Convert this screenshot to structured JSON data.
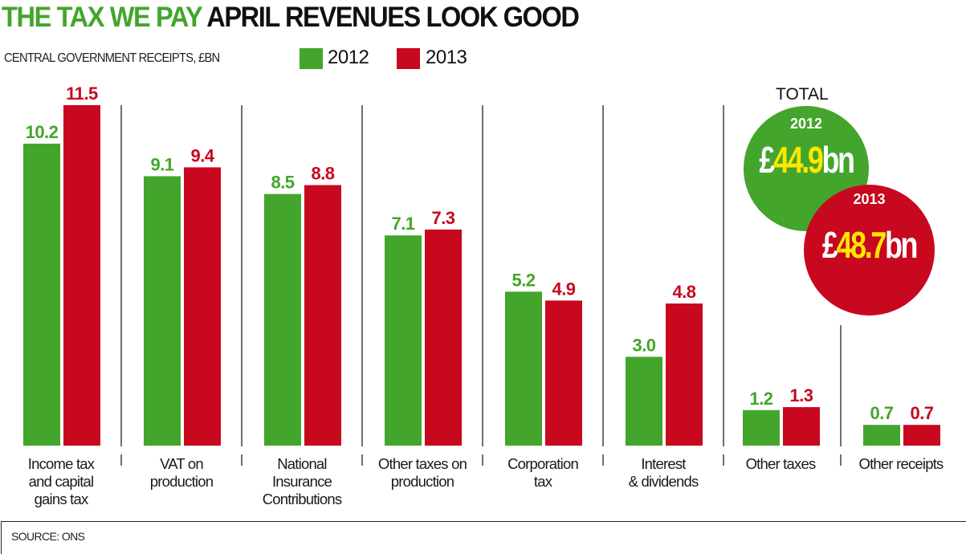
{
  "header": {
    "title_highlight": "THE TAX WE PAY",
    "title_rest": "APRIL REVENUES LOOK GOOD",
    "subtitle": "CENTRAL GOVERNMENT RECEIPTS, £BN"
  },
  "colors": {
    "green_2012": "#43a52b",
    "red_2013": "#c8081f",
    "highlight_yellow": "#ffe600"
  },
  "legend": [
    {
      "label": "2012",
      "color": "#43a52b"
    },
    {
      "label": "2013",
      "color": "#c8081f"
    }
  ],
  "totals": {
    "title": "TOTAL",
    "items": [
      {
        "year": "2012",
        "prefix": "£",
        "value": "44.9",
        "suffix": "bn",
        "color": "#43a52b"
      },
      {
        "year": "2013",
        "prefix": "£",
        "value": "48.7",
        "suffix": "bn",
        "color": "#c8081f"
      }
    ]
  },
  "chart_data": {
    "type": "bar",
    "title": "THE TAX WE PAY APRIL REVENUES LOOK GOOD",
    "subtitle": "CENTRAL GOVERNMENT RECEIPTS, £BN",
    "xlabel": "",
    "ylabel": "£bn",
    "ylim": [
      0,
      11.5
    ],
    "grid": false,
    "legend_position": "top-left",
    "categories": [
      [
        "Income tax",
        "and capital",
        "gains tax"
      ],
      [
        "VAT on",
        "production"
      ],
      [
        "National",
        "Insurance",
        "Contributions"
      ],
      [
        "Other taxes on",
        "production"
      ],
      [
        "Corporation",
        "tax"
      ],
      [
        "Interest",
        "& dividends"
      ],
      [
        "Other taxes"
      ],
      [
        "Other receipts"
      ]
    ],
    "series": [
      {
        "name": "2012",
        "color": "#43a52b",
        "values": [
          10.2,
          9.1,
          8.5,
          7.1,
          5.2,
          3.0,
          1.2,
          0.7
        ],
        "labels": [
          "10.2",
          "9.1",
          "8.5",
          "7.1",
          "5.2",
          "3.0",
          "1.2",
          "0.7"
        ]
      },
      {
        "name": "2013",
        "color": "#c8081f",
        "values": [
          11.5,
          9.4,
          8.8,
          7.3,
          4.9,
          4.8,
          1.3,
          0.7
        ],
        "labels": [
          "11.5",
          "9.4",
          "8.8",
          "7.3",
          "4.9",
          "4.8",
          "1.3",
          "0.7"
        ]
      }
    ],
    "totals": {
      "2012": 44.9,
      "2013": 48.7
    }
  },
  "footer": {
    "source": "SOURCE: ONS"
  }
}
